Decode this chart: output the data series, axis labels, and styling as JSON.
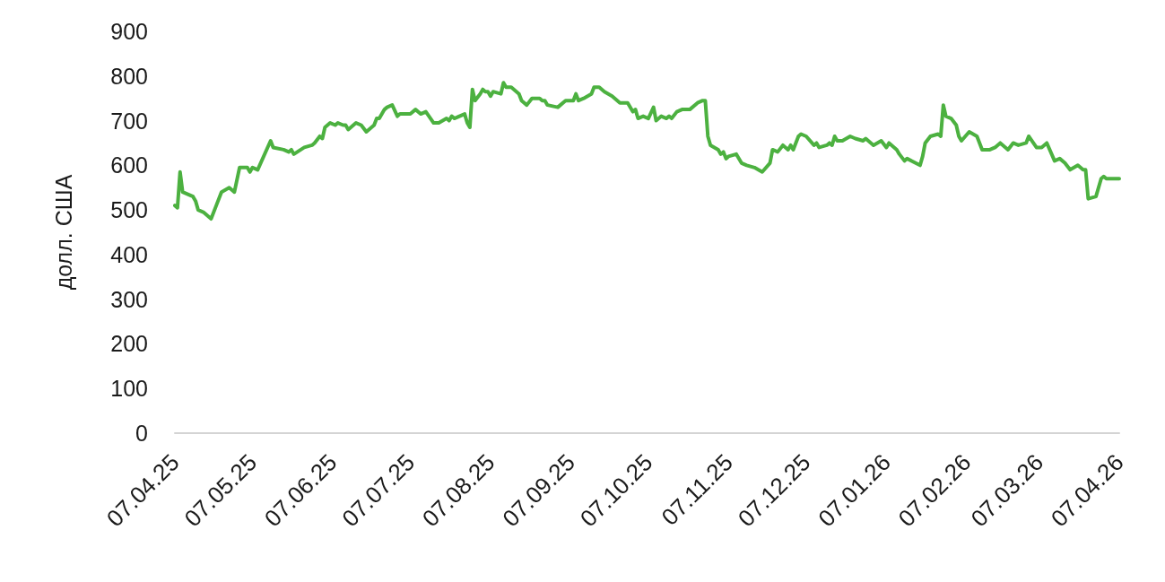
{
  "chart_data": {
    "type": "line",
    "ylabel": "долл. США",
    "x": [
      "2025-04-07",
      "2025-04-08",
      "2025-04-09",
      "2025-04-10",
      "2025-04-14",
      "2025-04-15",
      "2025-04-16",
      "2025-04-18",
      "2025-04-21",
      "2025-04-23",
      "2025-04-25",
      "2025-04-28",
      "2025-04-30",
      "2025-05-02",
      "2025-05-05",
      "2025-05-06",
      "2025-05-07",
      "2025-05-09",
      "2025-05-14",
      "2025-05-15",
      "2025-05-19",
      "2025-05-21",
      "2025-05-22",
      "2025-05-23",
      "2025-05-27",
      "2025-05-30",
      "2025-05-31",
      "2025-06-02",
      "2025-06-03",
      "2025-06-04",
      "2025-06-06",
      "2025-06-08",
      "2025-06-09",
      "2025-06-11",
      "2025-06-12",
      "2025-06-13",
      "2025-06-16",
      "2025-06-18",
      "2025-06-20",
      "2025-06-23",
      "2025-06-24",
      "2025-06-25",
      "2025-06-27",
      "2025-06-28",
      "2025-06-30",
      "2025-07-02",
      "2025-07-03",
      "2025-07-07",
      "2025-07-09",
      "2025-07-11",
      "2025-07-13",
      "2025-07-16",
      "2025-07-18",
      "2025-07-21",
      "2025-07-22",
      "2025-07-23",
      "2025-07-24",
      "2025-07-28",
      "2025-07-29",
      "2025-07-30",
      "2025-07-31",
      "2025-08-01",
      "2025-08-03",
      "2025-08-04",
      "2025-08-05",
      "2025-08-06",
      "2025-08-07",
      "2025-08-08",
      "2025-08-11",
      "2025-08-12",
      "2025-08-13",
      "2025-08-15",
      "2025-08-18",
      "2025-08-19",
      "2025-08-21",
      "2025-08-23",
      "2025-08-26",
      "2025-08-27",
      "2025-08-28",
      "2025-08-29",
      "2025-09-02",
      "2025-09-03",
      "2025-09-05",
      "2025-09-08",
      "2025-09-09",
      "2025-09-10",
      "2025-09-12",
      "2025-09-15",
      "2025-09-16",
      "2025-09-18",
      "2025-09-20",
      "2025-09-23",
      "2025-09-25",
      "2025-09-26",
      "2025-09-29",
      "2025-10-01",
      "2025-10-02",
      "2025-10-03",
      "2025-10-05",
      "2025-10-07",
      "2025-10-09",
      "2025-10-10",
      "2025-10-12",
      "2025-10-14",
      "2025-10-15",
      "2025-10-16",
      "2025-10-18",
      "2025-10-20",
      "2025-10-23",
      "2025-10-26",
      "2025-10-28",
      "2025-10-29",
      "2025-10-30",
      "2025-10-31",
      "2025-11-03",
      "2025-11-04",
      "2025-11-05",
      "2025-11-06",
      "2025-11-07",
      "2025-11-10",
      "2025-11-12",
      "2025-11-14",
      "2025-11-17",
      "2025-11-20",
      "2025-11-23",
      "2025-11-24",
      "2025-11-26",
      "2025-11-28",
      "2025-11-30",
      "2025-12-01",
      "2025-12-02",
      "2025-12-04",
      "2025-12-05",
      "2025-12-07",
      "2025-12-10",
      "2025-12-11",
      "2025-12-12",
      "2025-12-15",
      "2025-12-16",
      "2025-12-17",
      "2025-12-18",
      "2025-12-19",
      "2025-12-21",
      "2025-12-24",
      "2025-12-26",
      "2025-12-29",
      "2025-12-30",
      "2026-01-02",
      "2026-01-05",
      "2026-01-07",
      "2026-01-08",
      "2026-01-11",
      "2026-01-12",
      "2026-01-14",
      "2026-01-15",
      "2026-01-20",
      "2026-01-21",
      "2026-01-22",
      "2026-01-24",
      "2026-01-27",
      "2026-01-28",
      "2026-01-29",
      "2026-01-30",
      "2026-02-01",
      "2026-02-03",
      "2026-02-04",
      "2026-02-05",
      "2026-02-08",
      "2026-02-11",
      "2026-02-13",
      "2026-02-16",
      "2026-02-18",
      "2026-02-20",
      "2026-02-23",
      "2026-02-25",
      "2026-02-27",
      "2026-03-02",
      "2026-03-03",
      "2026-03-06",
      "2026-03-08",
      "2026-03-10",
      "2026-03-13",
      "2026-03-15",
      "2026-03-17",
      "2026-03-19",
      "2026-03-22",
      "2026-03-24",
      "2026-03-25",
      "2026-03-26",
      "2026-03-29",
      "2026-03-31",
      "2026-04-01",
      "2026-04-02",
      "2026-04-07"
    ],
    "series": [
      {
        "color": "#4cb140",
        "values": [
          510,
          505,
          585,
          540,
          530,
          520,
          500,
          495,
          480,
          510,
          540,
          550,
          540,
          595,
          595,
          585,
          595,
          590,
          655,
          640,
          635,
          630,
          635,
          625,
          640,
          645,
          650,
          665,
          660,
          685,
          695,
          690,
          695,
          690,
          690,
          680,
          695,
          690,
          675,
          690,
          705,
          705,
          725,
          730,
          735,
          710,
          715,
          715,
          725,
          715,
          720,
          695,
          695,
          705,
          700,
          710,
          705,
          715,
          695,
          685,
          770,
          745,
          760,
          770,
          765,
          765,
          755,
          765,
          760,
          785,
          775,
          775,
          760,
          745,
          735,
          750,
          750,
          745,
          745,
          735,
          730,
          735,
          745,
          745,
          760,
          745,
          750,
          760,
          775,
          775,
          765,
          755,
          745,
          740,
          740,
          720,
          725,
          705,
          710,
          705,
          730,
          700,
          710,
          705,
          710,
          705,
          720,
          725,
          725,
          740,
          745,
          745,
          665,
          645,
          635,
          625,
          630,
          615,
          620,
          625,
          605,
          600,
          595,
          585,
          605,
          635,
          630,
          645,
          635,
          645,
          635,
          665,
          670,
          665,
          645,
          650,
          640,
          645,
          650,
          645,
          665,
          655,
          655,
          665,
          660,
          655,
          660,
          645,
          655,
          640,
          650,
          635,
          625,
          610,
          615,
          600,
          620,
          650,
          665,
          670,
          665,
          735,
          710,
          705,
          690,
          665,
          655,
          675,
          665,
          635,
          635,
          640,
          650,
          635,
          650,
          645,
          650,
          665,
          640,
          640,
          650,
          610,
          615,
          605,
          590,
          600,
          590,
          590,
          525,
          530,
          570,
          575,
          570,
          570
        ]
      }
    ],
    "xlim": [
      "2025-04-07",
      "2026-04-07"
    ],
    "xticks": [
      {
        "value": "2025-04-07",
        "label": "07.04.25"
      },
      {
        "value": "2025-05-07",
        "label": "07.05.25"
      },
      {
        "value": "2025-06-07",
        "label": "07.06.25"
      },
      {
        "value": "2025-07-07",
        "label": "07.07.25"
      },
      {
        "value": "2025-08-07",
        "label": "07.08.25"
      },
      {
        "value": "2025-09-07",
        "label": "07.09.25"
      },
      {
        "value": "2025-10-07",
        "label": "07.10.25"
      },
      {
        "value": "2025-11-07",
        "label": "07.11.25"
      },
      {
        "value": "2025-12-07",
        "label": "07.12.25"
      },
      {
        "value": "2026-01-07",
        "label": "07.01.26"
      },
      {
        "value": "2026-02-07",
        "label": "07.02.26"
      },
      {
        "value": "2026-03-07",
        "label": "07.03.26"
      },
      {
        "value": "2026-04-07",
        "label": "07.04.26"
      }
    ],
    "ylim": [
      0,
      900
    ],
    "yticks": [
      0,
      100,
      200,
      300,
      400,
      500,
      600,
      700,
      800,
      900
    ],
    "line_style": "solid"
  }
}
